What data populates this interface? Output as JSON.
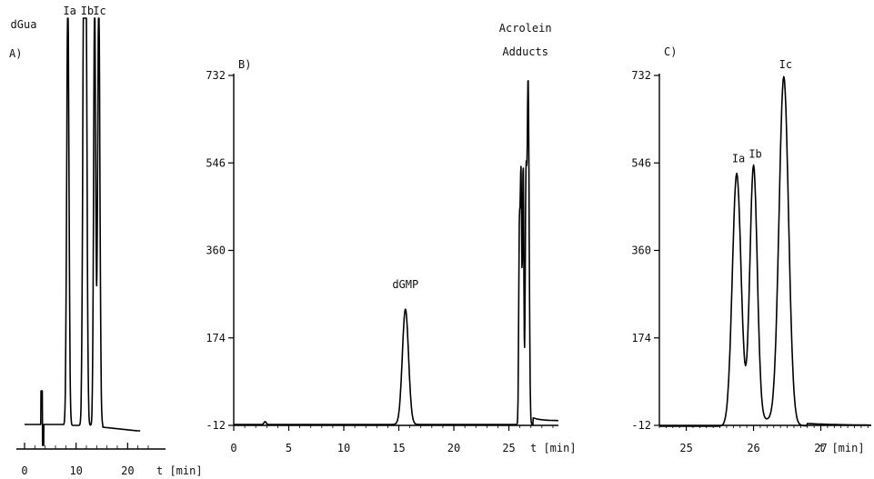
{
  "chart_data": [
    {
      "type": "line",
      "panel_label": "A)",
      "xlim": [
        0,
        24
      ],
      "x_ticks": [
        0,
        10,
        20
      ],
      "x_tick_labels": [
        "0",
        "10",
        "20"
      ],
      "x_unit_label": "t [min]",
      "peak_labels": [
        {
          "text": "dGua",
          "x": 3.4
        },
        {
          "text": "Ia",
          "x": 8.4
        },
        {
          "text": "Ib",
          "x": 11.8
        },
        {
          "text": "Ic",
          "x": 14.2
        }
      ]
    },
    {
      "type": "line",
      "panel_label": "B)",
      "xlim": [
        0,
        29.5
      ],
      "ylim": [
        -12,
        732
      ],
      "x_ticks": [
        0,
        5,
        10,
        15,
        20,
        25
      ],
      "x_tick_labels": [
        "0",
        "5",
        "10",
        "15",
        "20",
        "25"
      ],
      "x_unit_label": "t [min]",
      "y_ticks": [
        -12,
        174,
        360,
        546,
        732
      ],
      "y_tick_labels": [
        "-12",
        "174",
        "360",
        "546",
        "732"
      ],
      "annotations": [
        {
          "text": "dGMP",
          "x": 15.6,
          "y": 245
        },
        {
          "text": "Acrolein",
          "x": 26.5,
          "y": 820
        },
        {
          "text": "Adducts",
          "x": 26.5,
          "y": 775
        }
      ],
      "peaks": [
        {
          "x": 15.6,
          "y": 235
        },
        {
          "x": 26.0,
          "y": 520
        },
        {
          "x": 26.3,
          "y": 540
        },
        {
          "x": 26.7,
          "y": 720
        }
      ]
    },
    {
      "type": "line",
      "panel_label": "C)",
      "xlim": [
        24.6,
        27.75
      ],
      "ylim": [
        -12,
        732
      ],
      "x_ticks": [
        25,
        26,
        27
      ],
      "x_tick_labels": [
        "25",
        "26",
        "27"
      ],
      "x_unit_label": "t [min]",
      "y_ticks": [
        -12,
        174,
        360,
        546,
        732
      ],
      "y_tick_labels": [
        "-12",
        "174",
        "360",
        "546",
        "732"
      ],
      "peak_labels": [
        {
          "text": "Ia",
          "x": 25.75,
          "y": 520
        },
        {
          "text": "Ib",
          "x": 26.0,
          "y": 530
        },
        {
          "text": "Ic",
          "x": 26.45,
          "y": 720
        }
      ],
      "peaks": [
        {
          "x": 25.75,
          "y": 520
        },
        {
          "x": 26.0,
          "y": 530
        },
        {
          "x": 26.45,
          "y": 720
        }
      ]
    }
  ]
}
